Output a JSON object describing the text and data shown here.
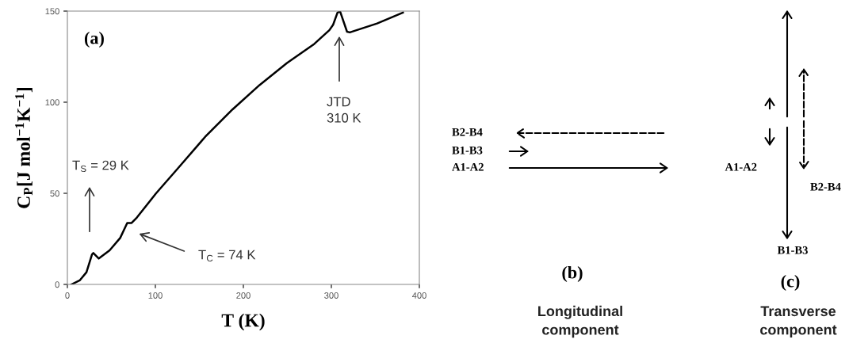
{
  "chart_data": [
    {
      "type": "line",
      "xlabel": "T (K)",
      "ylabel": "C$_{P}$[J mol$^{−1}$K$^{−1}$]",
      "xlim": [
        0,
        400
      ],
      "ylim": [
        0,
        150
      ],
      "xticks": [
        0,
        100,
        200,
        300,
        400
      ],
      "yticks": [
        0,
        50,
        100,
        150
      ],
      "grid": false,
      "marker": "none",
      "line_style": "solid",
      "series": [
        {
          "color": "#000000",
          "x": [
            4.6,
            14,
            21.7,
            28,
            29.5,
            35.7,
            48,
            60,
            68,
            73,
            79,
            100.8,
            125.6,
            156.6,
            187.6,
            218.6,
            249.6,
            280.6,
            297.7,
            302,
            307,
            310,
            317.8,
            321,
            352,
            381.4
          ],
          "values": [
            0,
            2.2,
            6.7,
            16.5,
            17.2,
            14.2,
            18.7,
            25.5,
            33.7,
            33.7,
            36.7,
            50,
            63.7,
            81,
            96,
            109.5,
            121.5,
            132,
            139.5,
            142.5,
            149.2,
            149.7,
            138.7,
            138.3,
            143.2,
            149.2
          ]
        }
      ],
      "annotations": [
        "(a)",
        "T$_{S}$ = 29 K",
        "T$_{C}$ = 74 K",
        "JTD\n310 K"
      ]
    },
    {
      "type": "other",
      "title": "(b)",
      "xlabel": "Longitudinal\ncomponent",
      "annotations": [
        "B2-B4",
        "B1-B3",
        "A1-A2"
      ]
    },
    {
      "type": "other",
      "title": "(c)",
      "xlabel": "Transverse\ncomponent",
      "annotations": [
        "A1-A2",
        "B2-B4",
        "B1-B3"
      ]
    }
  ]
}
